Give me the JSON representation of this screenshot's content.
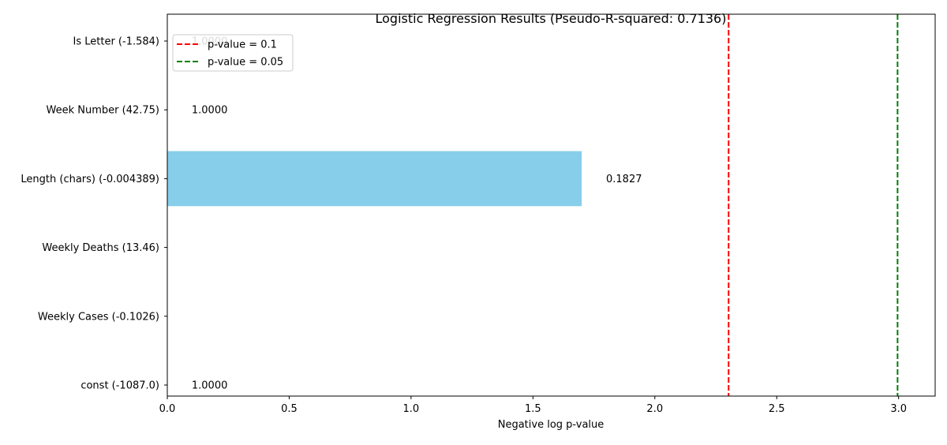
{
  "chart_data": {
    "type": "bar",
    "orientation": "horizontal",
    "title": "Logistic Regression Results (Pseudo-R-squared: 0.7136)",
    "xlabel": "Negative log p-value",
    "ylabel": "",
    "xlim": [
      0,
      3.15
    ],
    "x_ticks": [
      0.0,
      0.5,
      1.0,
      1.5,
      2.0,
      2.5,
      3.0
    ],
    "x_tick_labels": [
      "0.0",
      "0.5",
      "1.0",
      "1.5",
      "2.0",
      "2.5",
      "3.0"
    ],
    "categories": [
      "const (-1087.0)",
      "Weekly Cases (-0.1026)",
      "Weekly Deaths (13.46)",
      "Length (chars) (-0.004389)",
      "Week Number (42.75)",
      "Is Letter (-1.584)"
    ],
    "values": [
      0.0,
      0.0,
      0.0,
      1.7,
      0.0,
      0.0
    ],
    "bar_labels": [
      "1.0000",
      "",
      "",
      "0.1827",
      "1.0000",
      "1.0000"
    ],
    "bar_color": "#87ceeb",
    "reference_lines": [
      {
        "label": "p-value = 0.1",
        "x": 2.302585,
        "color": "#ff0000",
        "style": "dashed"
      },
      {
        "label": "p-value = 0.05",
        "x": 2.995732,
        "color": "#008000",
        "style": "dashed"
      }
    ],
    "legend_position": "upper-left",
    "grid": false
  }
}
